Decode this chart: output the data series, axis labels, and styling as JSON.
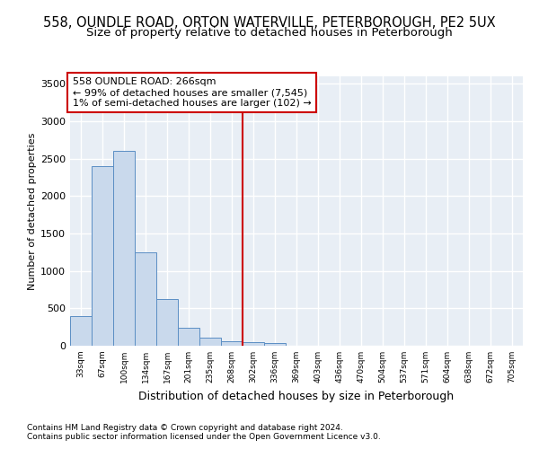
{
  "title1": "558, OUNDLE ROAD, ORTON WATERVILLE, PETERBOROUGH, PE2 5UX",
  "title2": "Size of property relative to detached houses in Peterborough",
  "xlabel": "Distribution of detached houses by size in Peterborough",
  "ylabel": "Number of detached properties",
  "footer1": "Contains HM Land Registry data © Crown copyright and database right 2024.",
  "footer2": "Contains public sector information licensed under the Open Government Licence v3.0.",
  "bar_labels": [
    "33sqm",
    "67sqm",
    "100sqm",
    "134sqm",
    "167sqm",
    "201sqm",
    "235sqm",
    "268sqm",
    "302sqm",
    "336sqm",
    "369sqm",
    "403sqm",
    "436sqm",
    "470sqm",
    "504sqm",
    "537sqm",
    "571sqm",
    "604sqm",
    "638sqm",
    "672sqm",
    "705sqm"
  ],
  "bar_values": [
    400,
    2400,
    2600,
    1250,
    620,
    240,
    105,
    65,
    50,
    35,
    0,
    0,
    0,
    0,
    0,
    0,
    0,
    0,
    0,
    0,
    0
  ],
  "bar_color": "#c9d9ec",
  "bar_edge_color": "#5b8ec4",
  "vline_color": "#cc0000",
  "vline_x": 7.5,
  "annotation_line1": "558 OUNDLE ROAD: 266sqm",
  "annotation_line2": "← 99% of detached houses are smaller (7,545)",
  "annotation_line3": "1% of semi-detached houses are larger (102) →",
  "annotation_box_color": "#ffffff",
  "annotation_box_edge": "#cc0000",
  "ylim": [
    0,
    3600
  ],
  "yticks": [
    0,
    500,
    1000,
    1500,
    2000,
    2500,
    3000,
    3500
  ],
  "bg_color": "#e8eef5",
  "grid_color": "#ffffff",
  "title_fontsize": 10.5,
  "subtitle_fontsize": 9.5,
  "tick_fontsize": 8,
  "xlabel_fontsize": 9,
  "ylabel_fontsize": 8,
  "footer_fontsize": 6.5
}
